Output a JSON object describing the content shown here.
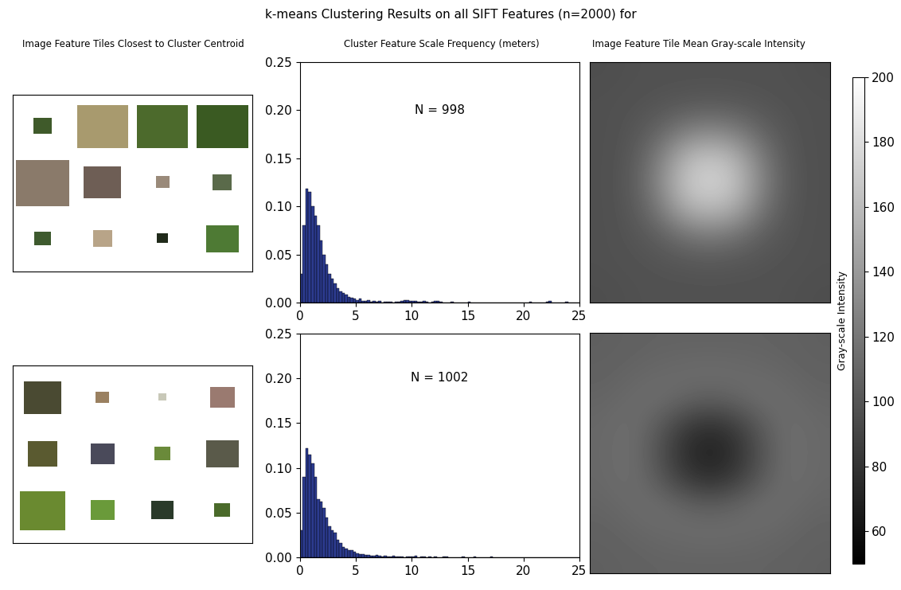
{
  "title": "k-means Clustering Results on all SIFT Features (n=2000) for",
  "column_titles": [
    "Image Feature Tiles Closest to Cluster Centroid",
    "Cluster Feature Scale Frequency (meters)",
    "Image Feature Tile Mean Gray-scale Intensity"
  ],
  "colorbar": {
    "label": "Gray-scale Intensity",
    "range": [
      50,
      200
    ],
    "ticks": [
      60,
      80,
      100,
      120,
      140,
      160,
      180,
      200
    ],
    "colormap": "gray"
  },
  "chart_data": [
    {
      "type": "histogram",
      "annotation": "N = 998",
      "color": "#2c3b8f",
      "bins": [
        0,
        0.25,
        0.5,
        0.75,
        1,
        1.25,
        1.5,
        1.75,
        2,
        2.25,
        2.5,
        2.75,
        3,
        3.25,
        3.5,
        3.75,
        4,
        4.25,
        4.5,
        4.75,
        5,
        5.25,
        5.5,
        5.75,
        6,
        6.25,
        6.5,
        6.75,
        7,
        7.25,
        7.5,
        7.75,
        8,
        8.25,
        8.5,
        8.75,
        9,
        9.25,
        9.5,
        9.75,
        10,
        10.25,
        10.5,
        10.75,
        11,
        11.25,
        11.5,
        11.75,
        12,
        12.25,
        12.5,
        12.75,
        13,
        13.25,
        13.5,
        13.75,
        14,
        14.25,
        14.5,
        14.75,
        15,
        15.25,
        15.5,
        15.75,
        16,
        16.25,
        16.5,
        16.75,
        17,
        17.25,
        17.5,
        17.75,
        18,
        18.25,
        18.5,
        18.75,
        19,
        19.25,
        19.5,
        19.75,
        20,
        20.25,
        20.5,
        20.75,
        21,
        21.25,
        21.5,
        21.75,
        22,
        22.25,
        22.5,
        22.75,
        23,
        23.25,
        23.5,
        23.75,
        24,
        24.25,
        24.5,
        24.75,
        25
      ],
      "counts": [
        0.03,
        0.08,
        0.118,
        0.115,
        0.1,
        0.09,
        0.08,
        0.065,
        0.05,
        0.04,
        0.03,
        0.025,
        0.02,
        0.015,
        0.012,
        0.01,
        0.008,
        0.006,
        0.005,
        0.004,
        0.003,
        0.004,
        0.002,
        0.002,
        0.003,
        0.001,
        0.002,
        0.001,
        0.002,
        0,
        0.001,
        0.001,
        0.001,
        0,
        0.001,
        0.001,
        0.002,
        0.003,
        0.003,
        0.002,
        0.002,
        0.002,
        0.001,
        0.001,
        0.002,
        0.001,
        0,
        0.001,
        0.002,
        0.002,
        0.001,
        0,
        0,
        0,
        0.001,
        0,
        0,
        0,
        0,
        0,
        0.001,
        0,
        0,
        0,
        0,
        0,
        0,
        0,
        0,
        0,
        0,
        0,
        0,
        0,
        0,
        0,
        0,
        0,
        0,
        0,
        0,
        0,
        0.001,
        0,
        0,
        0,
        0,
        0,
        0.001,
        0.002,
        0,
        0,
        0,
        0,
        0,
        0.001,
        0,
        0,
        0,
        0
      ],
      "xlim": [
        0,
        25
      ],
      "xticks": [
        0,
        5,
        10,
        15,
        20,
        25
      ],
      "ylim": [
        0,
        0.25
      ],
      "yticks": [
        {
          "value": 0,
          "label": "0.00"
        },
        {
          "value": 0.05,
          "label": "0.05"
        },
        {
          "value": 0.1,
          "label": "0.10"
        },
        {
          "value": 0.15,
          "label": "0.15"
        },
        {
          "value": 0.2,
          "label": "0.20"
        },
        {
          "value": 0.25,
          "label": "0.25"
        }
      ]
    },
    {
      "type": "histogram",
      "annotation": "N = 1002",
      "color": "#2c3b8f",
      "bins": [
        0,
        0.25,
        0.5,
        0.75,
        1,
        1.25,
        1.5,
        1.75,
        2,
        2.25,
        2.5,
        2.75,
        3,
        3.25,
        3.5,
        3.75,
        4,
        4.25,
        4.5,
        4.75,
        5,
        5.25,
        5.5,
        5.75,
        6,
        6.25,
        6.5,
        6.75,
        7,
        7.25,
        7.5,
        7.75,
        8,
        8.25,
        8.5,
        8.75,
        9,
        9.25,
        9.5,
        9.75,
        10,
        10.25,
        10.5,
        10.75,
        11,
        11.25,
        11.5,
        11.75,
        12,
        12.25,
        12.5,
        12.75,
        13,
        13.25,
        13.5,
        13.75,
        14,
        14.25,
        14.5,
        14.75,
        15,
        15.25,
        15.5,
        15.75,
        16,
        16.25,
        16.5,
        16.75,
        17,
        17.25,
        17.5,
        17.75,
        18,
        18.25,
        18.5,
        18.75,
        19,
        19.25,
        19.5,
        19.75,
        20,
        20.25,
        20.5,
        20.75,
        21,
        21.25,
        21.5,
        21.75,
        22,
        22.25,
        22.5,
        22.75,
        23,
        23.25,
        23.5,
        23.75,
        24,
        24.25,
        24.5,
        24.75,
        25
      ],
      "counts": [
        0.03,
        0.09,
        0.122,
        0.115,
        0.105,
        0.09,
        0.065,
        0.062,
        0.055,
        0.045,
        0.035,
        0.03,
        0.028,
        0.02,
        0.016,
        0.012,
        0.01,
        0.008,
        0.008,
        0.006,
        0.005,
        0.004,
        0.004,
        0.003,
        0.003,
        0.002,
        0.002,
        0.003,
        0.002,
        0.001,
        0.002,
        0.001,
        0.001,
        0.002,
        0.001,
        0.001,
        0.001,
        0,
        0.001,
        0.001,
        0.001,
        0.002,
        0,
        0.001,
        0.001,
        0,
        0.001,
        0,
        0.001,
        0,
        0,
        0.001,
        0.001,
        0,
        0,
        0,
        0,
        0,
        0.001,
        0,
        0,
        0,
        0.001,
        0,
        0,
        0,
        0,
        0,
        0.001,
        0,
        0,
        0,
        0,
        0,
        0,
        0,
        0,
        0,
        0,
        0,
        0,
        0,
        0,
        0,
        0,
        0,
        0,
        0,
        0,
        0,
        0,
        0,
        0,
        0,
        0,
        0,
        0,
        0,
        0,
        0
      ],
      "xlim": [
        0,
        25
      ],
      "xticks": [
        0,
        5,
        10,
        15,
        20,
        25
      ],
      "ylim": [
        0,
        0.25
      ],
      "yticks": [
        {
          "value": 0,
          "label": "0.00"
        },
        {
          "value": 0.05,
          "label": "0.05"
        },
        {
          "value": 0.1,
          "label": "0.10"
        },
        {
          "value": 0.15,
          "label": "0.15"
        },
        {
          "value": 0.2,
          "label": "0.20"
        },
        {
          "value": 0.25,
          "label": "0.25"
        }
      ]
    },
    {
      "type": "heatmap",
      "tick_labels": false,
      "cells": [
        [
          96,
          97,
          98,
          98,
          98,
          98,
          98,
          97,
          96
        ],
        [
          97,
          98,
          99,
          100,
          101,
          100,
          99,
          98,
          97
        ],
        [
          97,
          99,
          106,
          120,
          126,
          120,
          106,
          99,
          97
        ],
        [
          97,
          100,
          120,
          152,
          164,
          152,
          120,
          100,
          97
        ],
        [
          97,
          101,
          126,
          164,
          176,
          164,
          126,
          101,
          97
        ],
        [
          97,
          100,
          118,
          150,
          160,
          150,
          118,
          100,
          97
        ],
        [
          97,
          99,
          104,
          116,
          122,
          116,
          104,
          99,
          97
        ],
        [
          97,
          98,
          99,
          100,
          101,
          100,
          99,
          98,
          97
        ],
        [
          96,
          97,
          98,
          98,
          98,
          98,
          98,
          97,
          96
        ]
      ]
    },
    {
      "type": "heatmap",
      "tick_labels": false,
      "cells": [
        [
          106,
          107,
          108,
          108,
          108,
          108,
          108,
          107,
          106
        ],
        [
          107,
          109,
          111,
          113,
          114,
          113,
          111,
          109,
          107
        ],
        [
          109,
          112,
          115,
          110,
          106,
          110,
          115,
          112,
          109
        ],
        [
          111,
          115,
          105,
          86,
          78,
          86,
          105,
          115,
          111
        ],
        [
          111,
          116,
          100,
          78,
          68,
          78,
          100,
          116,
          111
        ],
        [
          111,
          115,
          105,
          86,
          78,
          86,
          105,
          115,
          111
        ],
        [
          109,
          112,
          115,
          110,
          106,
          110,
          115,
          112,
          109
        ],
        [
          107,
          109,
          111,
          113,
          114,
          113,
          111,
          109,
          107
        ],
        [
          106,
          107,
          108,
          108,
          108,
          108,
          108,
          107,
          106
        ]
      ]
    }
  ]
}
